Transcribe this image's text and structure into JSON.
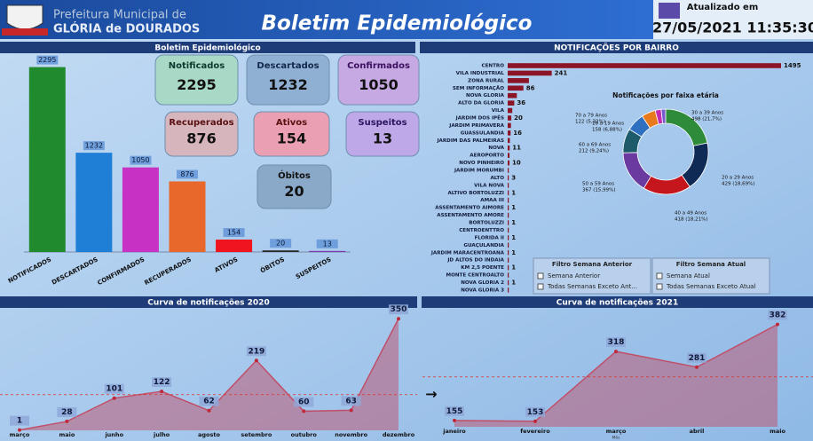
{
  "header": {
    "line1": "Prefeitura Municipal de",
    "line2": "GLÓRIA de DOURADOS",
    "title": "Boletim Epidemiológico",
    "updated_label": "Atualizado em",
    "updated": "27/05/2021 11:35:30"
  },
  "cards": [
    {
      "label": "Notificados",
      "value": 2295
    },
    {
      "label": "Descartados",
      "value": 1232
    },
    {
      "label": "Confirmados",
      "value": 1050
    },
    {
      "label": "Recuperados",
      "value": 876
    },
    {
      "label": "Ativos",
      "value": 154
    },
    {
      "label": "Suspeitos",
      "value": 13
    },
    {
      "label": "Óbitos",
      "value": 20
    }
  ],
  "filters": [
    {
      "title": "Filtro Semana Anterior",
      "options": [
        "Semana Anterior",
        "Todas Semanas Exceto Ant..."
      ]
    },
    {
      "title": "Filtro Semana Atual",
      "options": [
        "Semana Atual",
        "Todas Semanas Exceto Atual"
      ]
    }
  ],
  "chart_data": [
    {
      "type": "bar",
      "title": "Boletim Epidemiológico",
      "categories": [
        "NOTIFICADOS",
        "DESCARTADOS",
        "CONFIRMADOS",
        "RECUPERADOS",
        "ATIVOS",
        "ÓBITOS",
        "SUSPEITOS"
      ],
      "values": [
        2295,
        1232,
        1050,
        876,
        154,
        20,
        13
      ],
      "colors": [
        "#1f8a2e",
        "#1f7fd6",
        "#c832c4",
        "#e8672a",
        "#f0141e",
        "#2a2a2a",
        "#7a3ab0"
      ],
      "ylim": [
        0,
        2500
      ]
    },
    {
      "type": "hbar",
      "title": "NOTIFICAÇÕES POR BAIRRO",
      "categories": [
        "CENTRO",
        "VILA INDUSTRIAL",
        "ZONA RURAL",
        "SEM INFORMAÇÃO",
        "NOVA GLORIA",
        "ALTO DA GLORIA",
        "VILA",
        "JARDIM DOS IPÊS",
        "JARDIM PRIMAVERA",
        "GUASSULANDIA",
        "JARDIM DAS PALMEIRAS",
        "NOVA",
        "AEROPORTO",
        "NOVO PINHEIRO",
        "JARDIM MORUMBI",
        "ALTO",
        "VILA NOVA",
        "ALTIVO BORTOLUZZI",
        "AMAA III",
        "ASSENTAMENTO AIMORE",
        "ASSENTAMENTO AMORE",
        "BORTOLUZZI",
        "CENTROENTTRO",
        "FLORIDA II",
        "GUAÇULANDIA",
        "JARDIM MARACENTROANA",
        "JD ALTOS DO INDAIA",
        "KM 2,5 POENTE",
        "MONTE CENTROALTO",
        "NOVA GLORIA 2",
        "NOVA GLORIA 3"
      ],
      "values": [
        1495,
        241,
        116,
        86,
        50,
        36,
        25,
        20,
        18,
        16,
        12,
        11,
        10,
        10,
        5,
        3,
        2,
        1,
        1,
        1,
        1,
        1,
        1,
        1,
        1,
        1,
        1,
        1,
        1,
        1,
        1
      ],
      "value_labels": [
        "1495",
        "241",
        null,
        "86",
        null,
        "36",
        null,
        "20",
        null,
        "16",
        null,
        "11",
        null,
        "10",
        null,
        "3",
        null,
        "1",
        null,
        "1",
        null,
        "1",
        null,
        "1",
        null,
        "1",
        null,
        "1",
        null,
        "1",
        null
      ],
      "color": "#8b1426",
      "xlim": [
        0,
        1500
      ]
    },
    {
      "type": "donut",
      "title": "Notificações por faixa etária",
      "categories": [
        "30 a 39 Anos",
        "20 a 29 Anos",
        "40 a 49 Anos",
        "50 a 59 Anos",
        "60 a 69 Anos",
        "10 a 19 Anos",
        "70 a 79 Anos",
        null,
        null
      ],
      "values": [
        498,
        429,
        418,
        367,
        212,
        158,
        122,
        52,
        39
      ],
      "value_labels": [
        "498 (21,7%)",
        "429 (18,69%)",
        "418 (18,21%)",
        "367 (15,99%)",
        "212 (9,24%)",
        "158 (6,88%)",
        "122 (5,32%)",
        null,
        null
      ],
      "colors": [
        "#2e8b3a",
        "#0f2a55",
        "#c4161c",
        "#6a3aa0",
        "#1d5a6a",
        "#2f6fc0",
        "#e87a1e",
        "#c22ab0",
        "#7a5ad0"
      ]
    },
    {
      "type": "area",
      "title": "Curva de notificações 2020",
      "categories": [
        "março",
        "maio",
        "junho",
        "julho",
        "agosto",
        "setembro",
        "outubro",
        "novembro",
        "dezembro"
      ],
      "values": [
        1,
        28,
        101,
        122,
        62,
        219,
        60,
        63,
        350
      ],
      "color": "#c0506a",
      "ylim": [
        0,
        370
      ],
      "reference_line": 112
    },
    {
      "type": "area",
      "title": "Curva de notificações 2021",
      "x_label": "Mês",
      "categories": [
        "janeiro",
        "fevereiro",
        "março",
        "abril",
        "maio"
      ],
      "values": [
        155,
        153,
        318,
        281,
        382
      ],
      "color": "#c0506a",
      "ylim": [
        140,
        400
      ],
      "reference_line": 258
    }
  ]
}
